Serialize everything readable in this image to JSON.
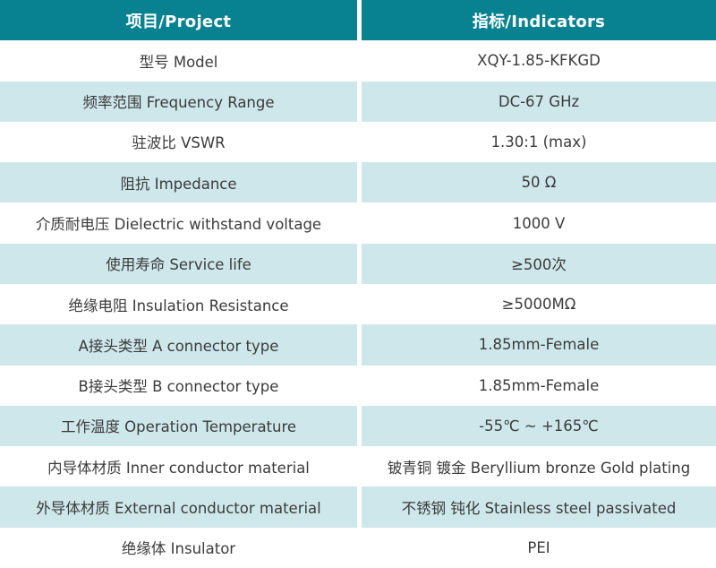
{
  "colors": {
    "header_bg": "#088290",
    "header_text": "#ffffff",
    "row_bg": "#ffffff",
    "row_alt_bg": "#cee7eb",
    "body_text": "#3b3b3b",
    "divider": "#ffffff"
  },
  "table": {
    "header": {
      "project": "项目/Project",
      "indicators": "指标/Indicators"
    },
    "rows": [
      {
        "project": "型号 Model",
        "indicator": "XQY-1.85-KFKGD"
      },
      {
        "project": "频率范围 Frequency Range",
        "indicator": "DC-67 GHz"
      },
      {
        "project": "驻波比 VSWR",
        "indicator": "1.30:1 (max)"
      },
      {
        "project": "阻抗 Impedance",
        "indicator": "50 Ω"
      },
      {
        "project": "介质耐电压 Dielectric withstand voltage",
        "indicator": "1000 V"
      },
      {
        "project": "使用寿命 Service life",
        "indicator": "≥500次"
      },
      {
        "project": "绝缘电阻 Insulation Resistance",
        "indicator": "≥5000MΩ"
      },
      {
        "project": "A接头类型 A connector type",
        "indicator": "1.85mm-Female"
      },
      {
        "project": "B接头类型 B connector type",
        "indicator": "1.85mm-Female"
      },
      {
        "project": "工作温度 Operation Temperature",
        "indicator": "-55℃ ~ +165℃"
      },
      {
        "project": "内导体材质 Inner conductor material",
        "indicator": "铍青铜 镀金 Beryllium bronze Gold plating"
      },
      {
        "project": "外导体材质 External conductor material",
        "indicator": "不锈钢 钝化 Stainless steel passivated"
      },
      {
        "project": "绝缘体 Insulator",
        "indicator": "PEI"
      }
    ]
  }
}
